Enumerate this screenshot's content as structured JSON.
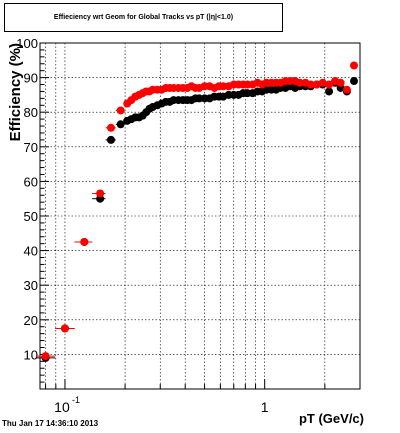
{
  "chart_data": {
    "type": "scatter",
    "title": "Effieciency wrt Geom for Global Tracks vs pT (|η|<1.0)",
    "xlabel": "pT (GeV/c)",
    "ylabel": "Efficiency (%)",
    "xscale": "log",
    "xlim": [
      0.075,
      3.0
    ],
    "ylim": [
      0,
      100
    ],
    "grid": true,
    "x_tick_labels": [
      {
        "label_base": "10",
        "label_exp": "-1",
        "value": 0.1
      },
      {
        "label_base": "1",
        "label_exp": "",
        "value": 1.0
      }
    ],
    "y_ticks": [
      0,
      10,
      20,
      30,
      40,
      50,
      60,
      70,
      80,
      90,
      100
    ],
    "y_tick_labels": [
      "",
      "10",
      "20",
      "30",
      "40",
      "50",
      "60",
      "70",
      "80",
      "90",
      "100"
    ],
    "series": [
      {
        "color": "#000000",
        "x": [
          0.08,
          0.1,
          0.125,
          0.15,
          0.17,
          0.19,
          0.205,
          0.215,
          0.225,
          0.235,
          0.245,
          0.255,
          0.265,
          0.275,
          0.29,
          0.305,
          0.32,
          0.335,
          0.35,
          0.37,
          0.39,
          0.41,
          0.43,
          0.45,
          0.47,
          0.5,
          0.53,
          0.56,
          0.59,
          0.62,
          0.66,
          0.7,
          0.74,
          0.78,
          0.82,
          0.87,
          0.92,
          0.97,
          1.02,
          1.08,
          1.14,
          1.2,
          1.27,
          1.34,
          1.42,
          1.5,
          1.6,
          1.7,
          1.82,
          1.95,
          2.1,
          2.25,
          2.4,
          2.58,
          2.8
        ],
        "y": [
          9,
          17.5,
          42.5,
          55,
          72,
          76.5,
          77.5,
          78,
          78.5,
          78.5,
          79,
          80,
          81,
          81.5,
          82,
          82.5,
          83,
          83,
          83.5,
          83.5,
          83.5,
          83.5,
          83.5,
          84,
          84,
          84,
          84,
          84.5,
          84.5,
          84.5,
          85,
          85,
          85,
          85.5,
          85.5,
          85.5,
          86,
          86,
          86.5,
          86.5,
          86.5,
          87,
          87,
          87.5,
          87,
          87.5,
          87.5,
          87.5,
          88,
          88,
          86,
          88.5,
          87,
          86,
          89
        ]
      },
      {
        "color": "#ff0000",
        "x": [
          0.08,
          0.1,
          0.125,
          0.15,
          0.17,
          0.19,
          0.205,
          0.215,
          0.225,
          0.235,
          0.245,
          0.255,
          0.265,
          0.275,
          0.29,
          0.305,
          0.32,
          0.335,
          0.35,
          0.37,
          0.39,
          0.41,
          0.43,
          0.45,
          0.47,
          0.5,
          0.53,
          0.56,
          0.59,
          0.62,
          0.66,
          0.7,
          0.74,
          0.78,
          0.82,
          0.87,
          0.92,
          0.97,
          1.02,
          1.08,
          1.14,
          1.2,
          1.27,
          1.34,
          1.42,
          1.5,
          1.6,
          1.7,
          1.82,
          1.95,
          2.1,
          2.25,
          2.4,
          2.58,
          2.8
        ],
        "y": [
          9.5,
          17.5,
          42.5,
          56.5,
          75.5,
          80.5,
          82.5,
          83.5,
          84.5,
          85,
          85.5,
          86,
          86,
          86.5,
          86.5,
          86.5,
          87,
          87,
          87,
          87,
          87,
          87,
          87.5,
          87,
          87,
          87.5,
          87.5,
          87,
          87.5,
          87.5,
          87.5,
          88,
          88,
          88,
          88,
          88,
          88.5,
          88,
          88.5,
          88.5,
          88.5,
          88.5,
          89,
          89,
          89,
          88.5,
          88.5,
          88,
          88,
          88.5,
          88,
          89,
          88.5,
          86.5,
          93.5
        ]
      }
    ]
  },
  "footer": {
    "timestamp": "Thu Jan 17 14:36:10 2013"
  }
}
